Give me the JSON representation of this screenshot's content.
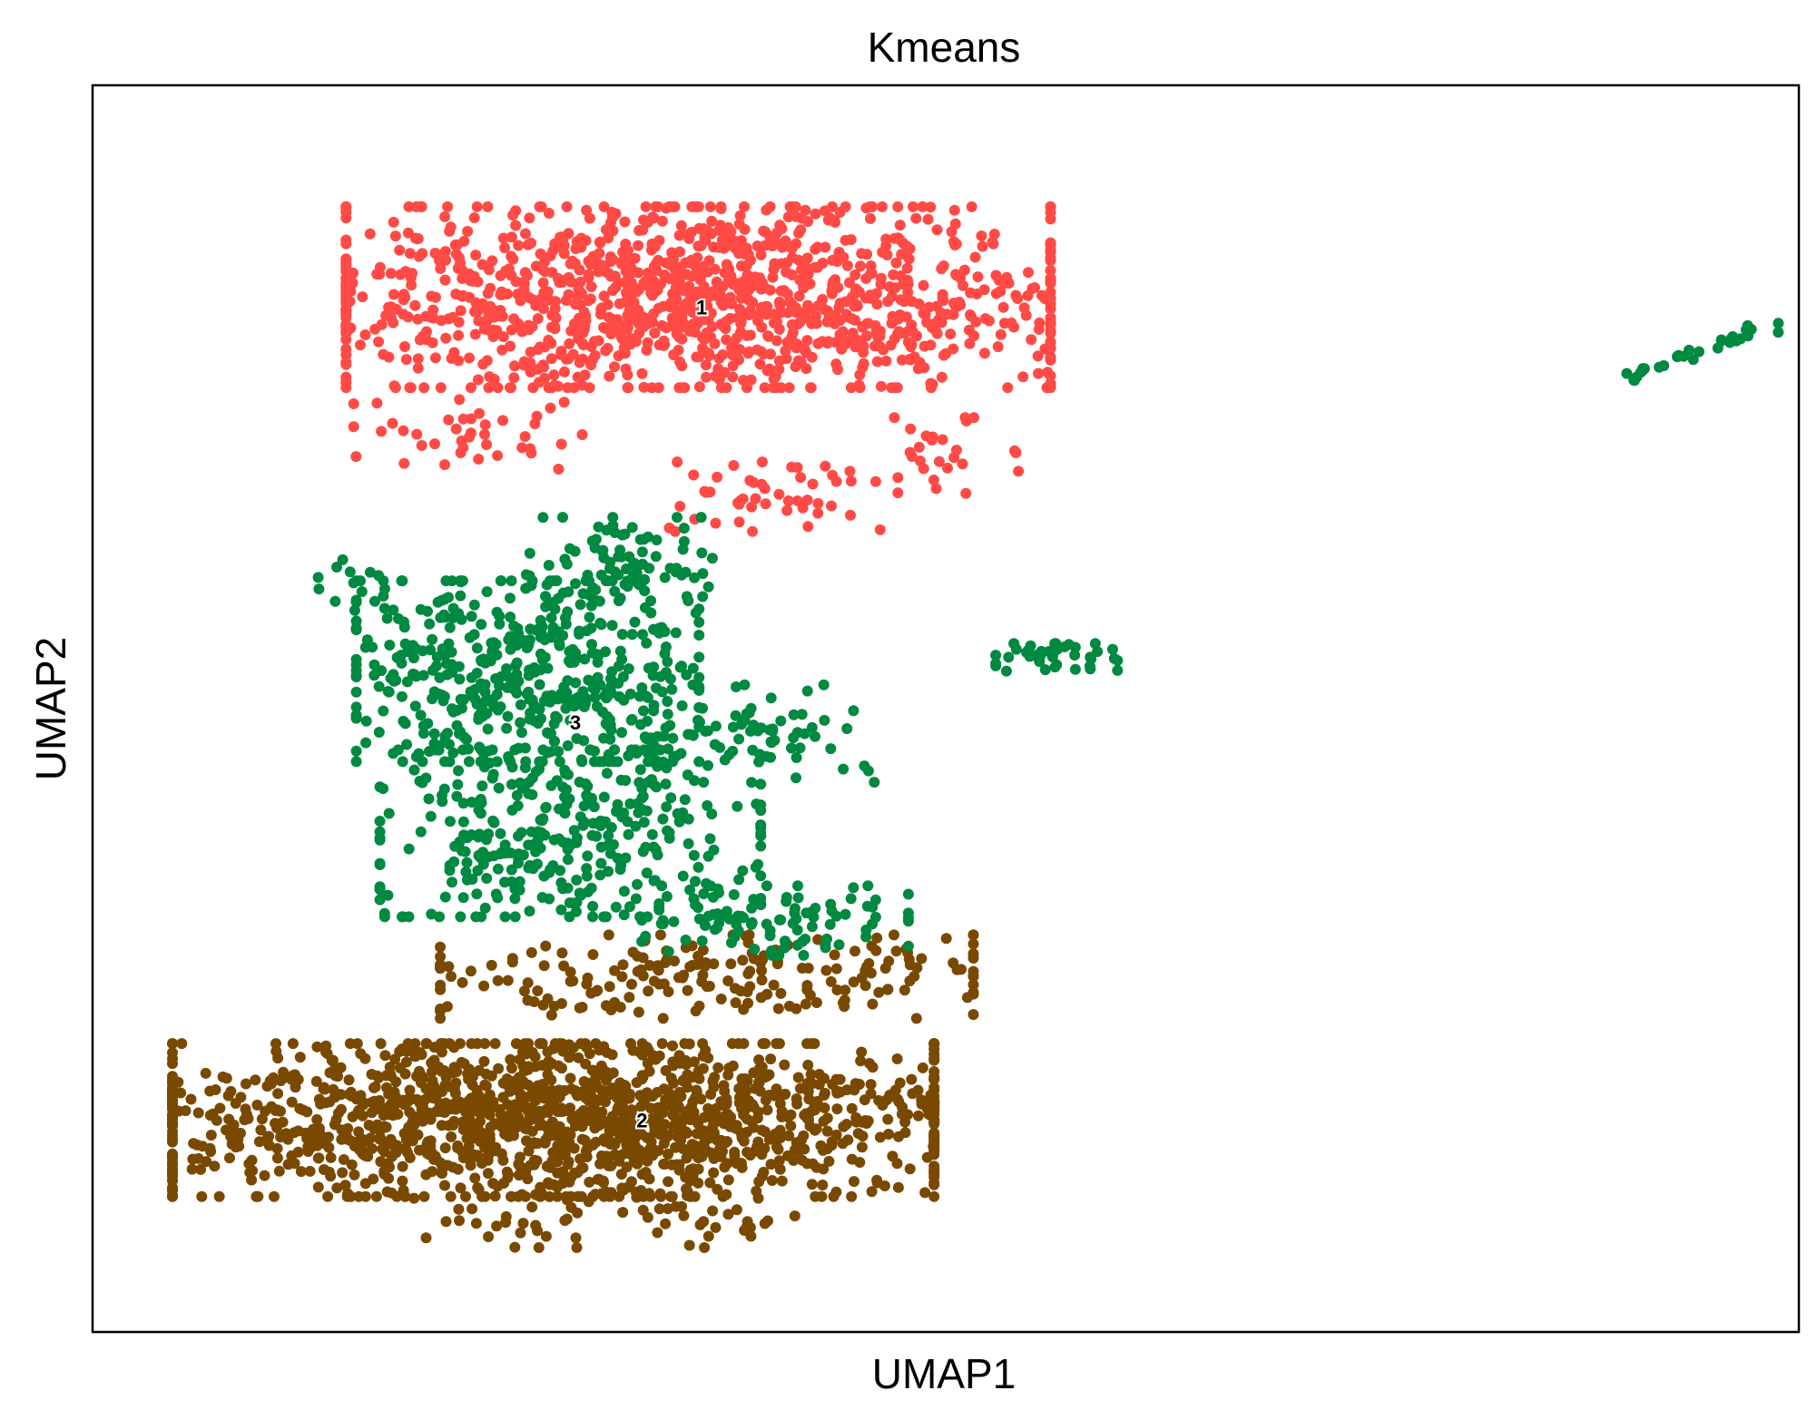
{
  "chart_data": {
    "type": "scatter",
    "title": "Kmeans",
    "xlabel": "UMAP1",
    "ylabel": "UMAP2",
    "xlim": [
      0,
      100
    ],
    "ylim": [
      0,
      100
    ],
    "grid": false,
    "legend": "on data",
    "ticks": "none",
    "marker_shape": "filled circle",
    "series": [
      {
        "name": "1",
        "color": "#ff4a46",
        "label_at": [
          35.7,
          82.2
        ],
        "regions": [
          {
            "center": [
              35.5,
              83.0
            ],
            "spread": [
              18.5,
              6.5
            ],
            "count": 1250
          },
          {
            "center": [
              22.0,
              72.0
            ],
            "spread": [
              6.0,
              2.5
            ],
            "count": 40
          },
          {
            "center": [
              40.5,
              67.0
            ],
            "spread": [
              6.0,
              2.5
            ],
            "count": 50
          },
          {
            "center": [
              50.0,
              70.0
            ],
            "spread": [
              4.0,
              3.0
            ],
            "count": 25
          }
        ]
      },
      {
        "name": "2",
        "color": "#7a4900",
        "label_at": [
          32.2,
          17.0
        ],
        "regions": [
          {
            "center": [
              27.0,
              17.0
            ],
            "spread": [
              20.0,
              5.5
            ],
            "count": 1500
          },
          {
            "center": [
              36.0,
              28.5
            ],
            "spread": [
              14.0,
              3.0
            ],
            "count": 200
          },
          {
            "center": [
              30.0,
              9.0
            ],
            "spread": [
              10.0,
              2.0
            ],
            "count": 60
          }
        ]
      },
      {
        "name": "3",
        "color": "#008941",
        "label_at": [
          28.3,
          48.9
        ],
        "regions": [
          {
            "center": [
              25.5,
              53.0
            ],
            "spread": [
              9.0,
              6.5
            ],
            "count": 500
          },
          {
            "center": [
              28.0,
              40.0
            ],
            "spread": [
              10.0,
              6.0
            ],
            "count": 350
          },
          {
            "center": [
              38.0,
              48.0
            ],
            "spread": [
              7.0,
              3.5
            ],
            "count": 90
          },
          {
            "center": [
              40.0,
              33.0
            ],
            "spread": [
              7.0,
              2.5
            ],
            "count": 90
          },
          {
            "center": [
              31.0,
              62.0
            ],
            "spread": [
              5.0,
              3.0
            ],
            "count": 80
          },
          {
            "center": [
              56.5,
              54.0
            ],
            "spread": [
              3.2,
              1.1
            ],
            "count": 40
          },
          {
            "center": [
              94.3,
              78.8
            ],
            "spread": [
              4.5,
              2.0
            ],
            "count": 30,
            "line": true
          },
          {
            "center": [
              15.0,
              60.0
            ],
            "spread": [
              2.0,
              2.0
            ],
            "count": 12
          }
        ]
      }
    ]
  }
}
